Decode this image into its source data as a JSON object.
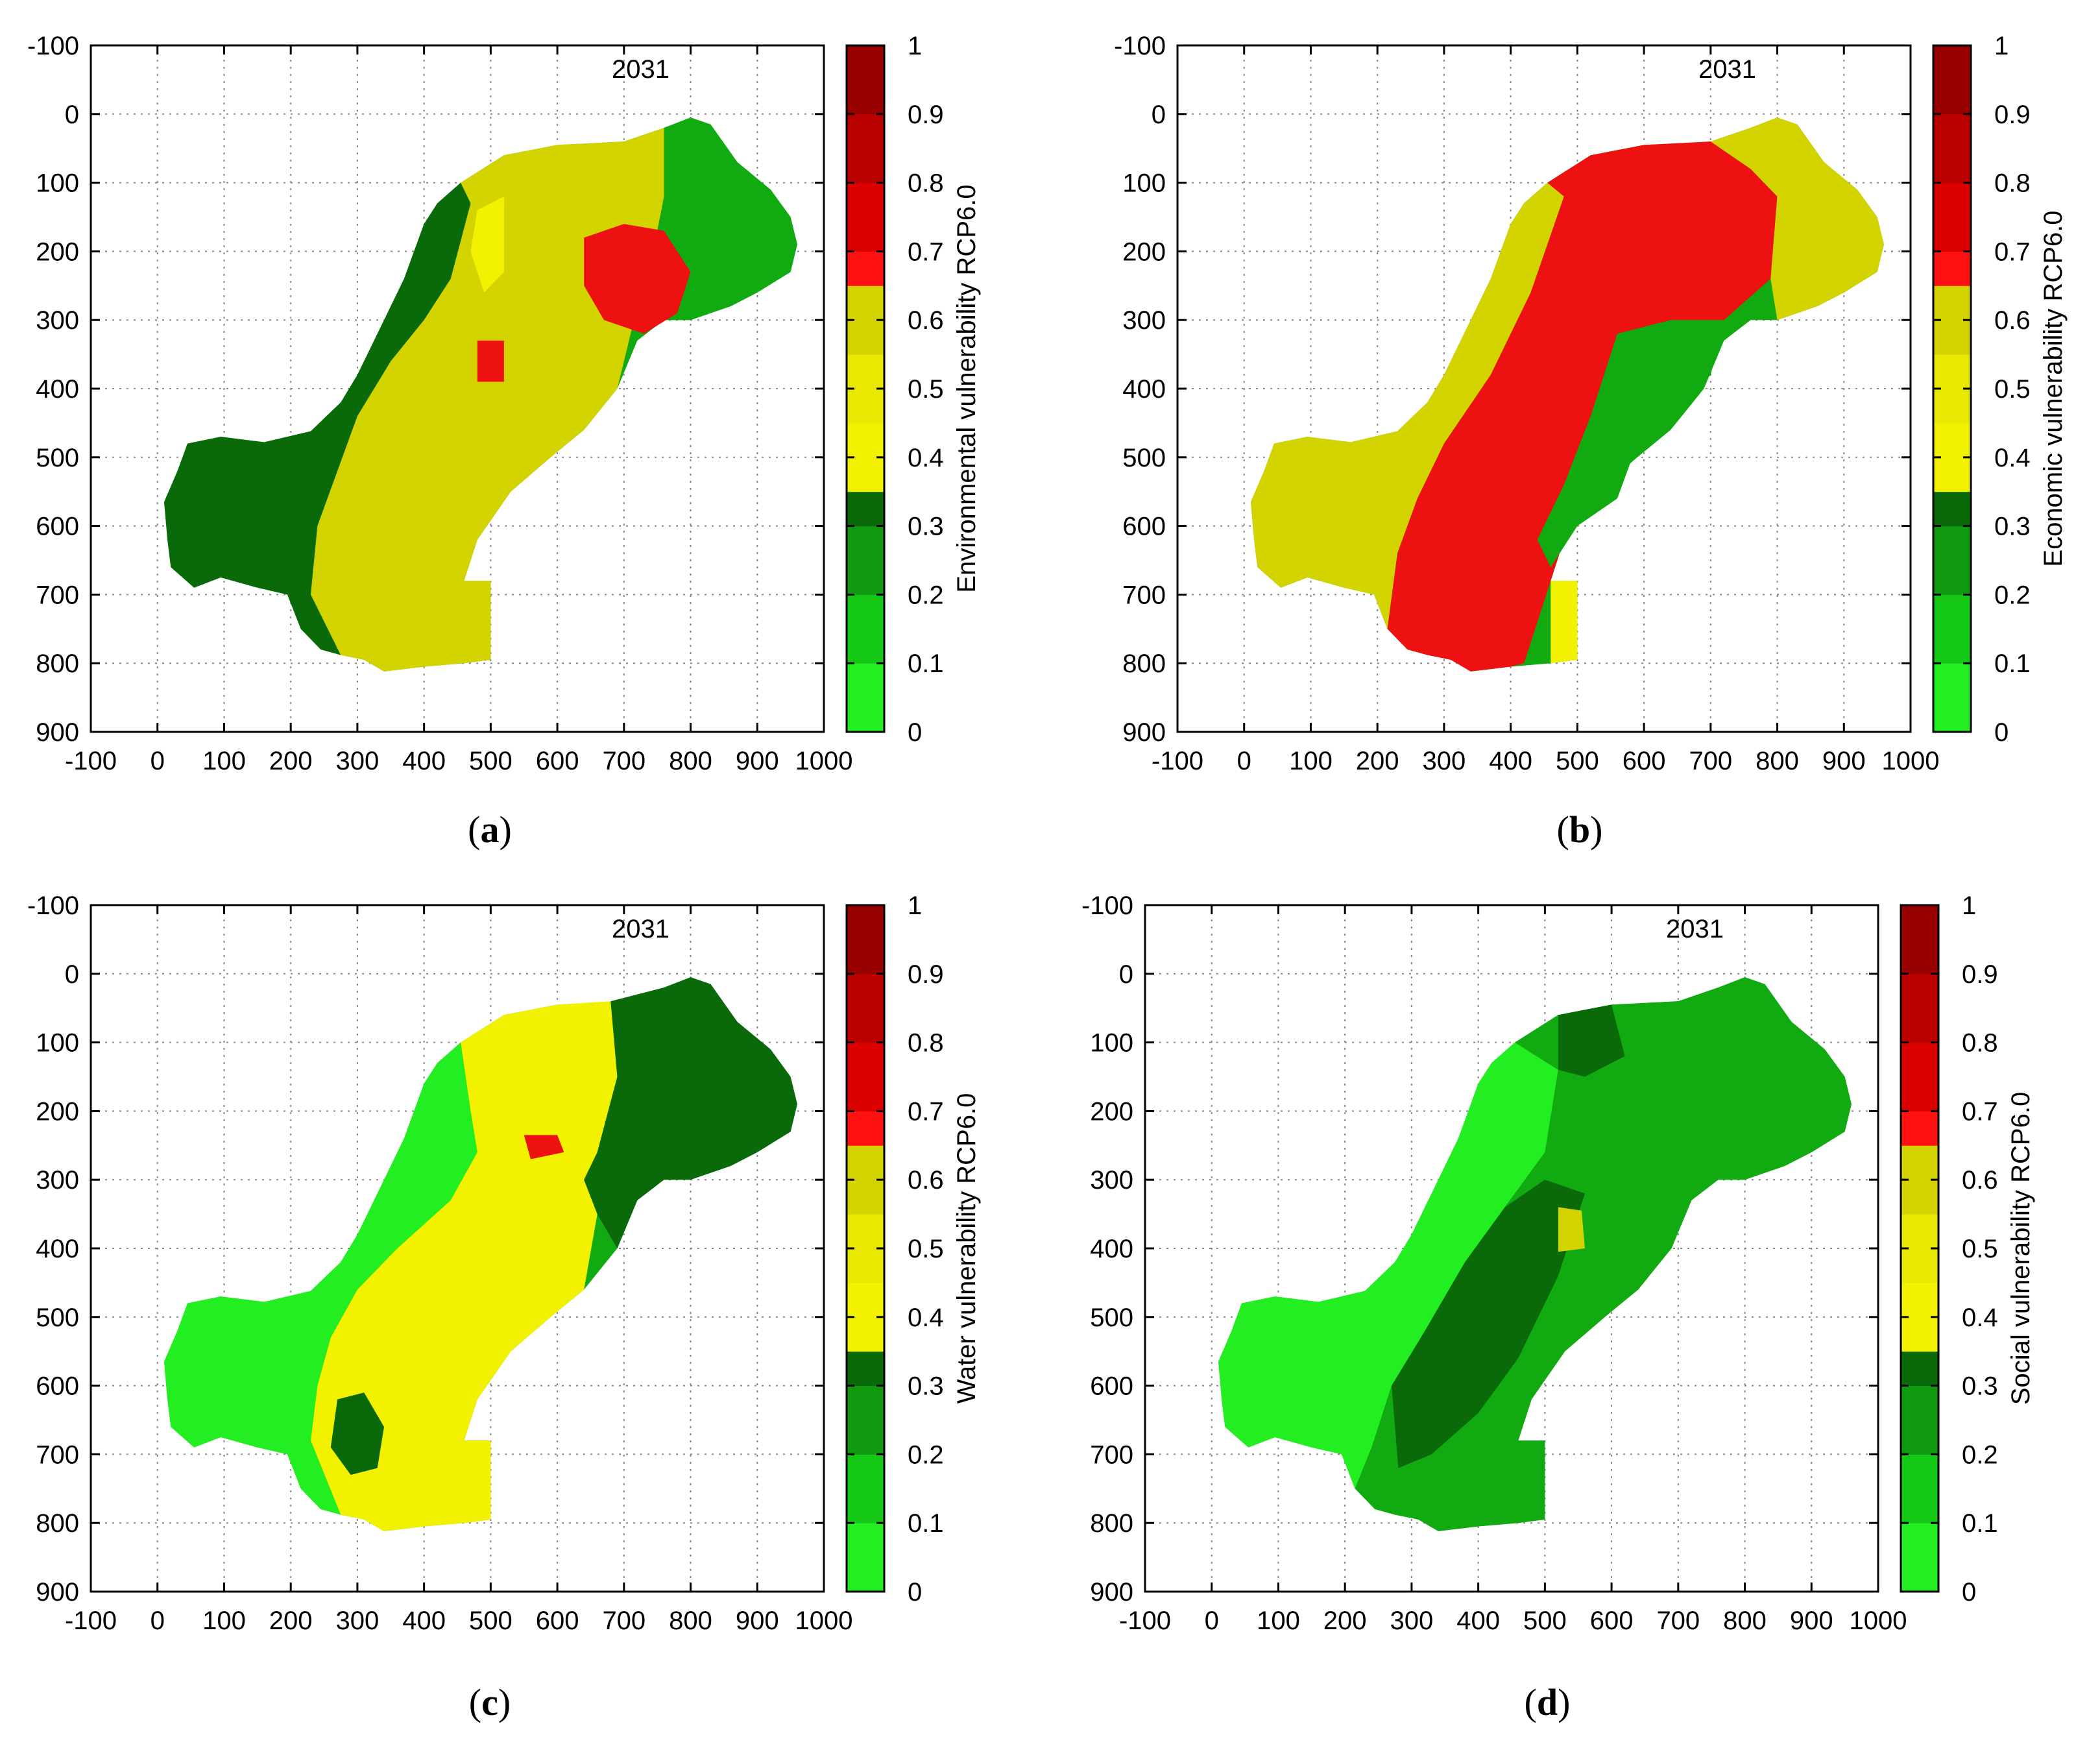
{
  "figure": {
    "panels": [
      {
        "caption_label": "a",
        "year_label": "2031",
        "colorbar_label": "Environmental vulnerability RCP6.0"
      },
      {
        "caption_label": "b",
        "year_label": "2031",
        "colorbar_label": "Economic vulnerability RCP6.0"
      },
      {
        "caption_label": "c",
        "year_label": "2031",
        "colorbar_label": "Water vulnerability RCP6.0"
      },
      {
        "caption_label": "d",
        "year_label": "2031",
        "colorbar_label": "Social vulnerability RCP6.0"
      }
    ]
  },
  "chart_data": [
    {
      "type": "heatmap",
      "title": "2031",
      "xlabel": "",
      "ylabel": "",
      "xlim": [
        -100,
        1000
      ],
      "ylim": [
        900,
        -100
      ],
      "x_ticks": [
        "-100",
        "0",
        "100",
        "200",
        "300",
        "400",
        "500",
        "600",
        "700",
        "800",
        "900",
        "1000"
      ],
      "y_ticks": [
        "-100",
        "0",
        "100",
        "200",
        "300",
        "400",
        "500",
        "600",
        "700",
        "800",
        "900"
      ],
      "colorbar": {
        "label": "Environmental vulnerability RCP6.0",
        "range": [
          0,
          1
        ],
        "ticks": [
          "0",
          "0.1",
          "0.2",
          "0.3",
          "0.4",
          "0.5",
          "0.6",
          "0.7",
          "0.8",
          "0.9",
          "1"
        ]
      },
      "grid": true,
      "dominant_classes": {
        "west": "low",
        "center": "medium",
        "east_center": "high",
        "northeast": "low"
      }
    },
    {
      "type": "heatmap",
      "title": "2031",
      "xlabel": "",
      "ylabel": "",
      "xlim": [
        -100,
        1000
      ],
      "ylim": [
        900,
        -100
      ],
      "x_ticks": [
        "-100",
        "0",
        "100",
        "200",
        "300",
        "400",
        "500",
        "600",
        "700",
        "800",
        "900",
        "1000"
      ],
      "y_ticks": [
        "-100",
        "0",
        "100",
        "200",
        "300",
        "400",
        "500",
        "600",
        "700",
        "800",
        "900"
      ],
      "colorbar": {
        "label": "Economic vulnerability RCP6.0",
        "range": [
          0,
          1
        ],
        "ticks": [
          "0",
          "0.1",
          "0.2",
          "0.3",
          "0.4",
          "0.5",
          "0.6",
          "0.7",
          "0.8",
          "0.9",
          "1"
        ]
      },
      "grid": true,
      "dominant_classes": {
        "west": "medium",
        "center": "high",
        "southcenter": "high",
        "northeast": "medium"
      }
    },
    {
      "type": "heatmap",
      "title": "2031",
      "xlabel": "",
      "ylabel": "",
      "xlim": [
        -100,
        1000
      ],
      "ylim": [
        900,
        -100
      ],
      "x_ticks": [
        "-100",
        "0",
        "100",
        "200",
        "300",
        "400",
        "500",
        "600",
        "700",
        "800",
        "900",
        "1000"
      ],
      "y_ticks": [
        "-100",
        "0",
        "100",
        "200",
        "300",
        "400",
        "500",
        "600",
        "700",
        "800",
        "900"
      ],
      "colorbar": {
        "label": "Water vulnerability RCP6.0",
        "range": [
          0,
          1
        ],
        "ticks": [
          "0",
          "0.1",
          "0.2",
          "0.3",
          "0.4",
          "0.5",
          "0.6",
          "0.7",
          "0.8",
          "0.9",
          "1"
        ]
      },
      "grid": true,
      "dominant_classes": {
        "west": "low",
        "center": "medium",
        "east": "low"
      }
    },
    {
      "type": "heatmap",
      "title": "2031",
      "xlabel": "",
      "ylabel": "",
      "xlim": [
        -100,
        1000
      ],
      "ylim": [
        900,
        -100
      ],
      "x_ticks": [
        "-100",
        "0",
        "100",
        "200",
        "300",
        "400",
        "500",
        "600",
        "700",
        "800",
        "900",
        "1000"
      ],
      "y_ticks": [
        "-100",
        "0",
        "100",
        "200",
        "300",
        "400",
        "500",
        "600",
        "700",
        "800",
        "900"
      ],
      "colorbar": {
        "label": "Social vulnerability RCP6.0",
        "range": [
          0,
          1
        ],
        "ticks": [
          "0",
          "0.1",
          "0.2",
          "0.3",
          "0.4",
          "0.5",
          "0.6",
          "0.7",
          "0.8",
          "0.9",
          "1"
        ]
      },
      "grid": true,
      "dominant_classes": {
        "west": "low",
        "center": "low",
        "east": "low"
      }
    }
  ],
  "colors": {
    "low_light": "#22ee22",
    "low_mid": "#11aa11",
    "low_dark": "#0a6a0a",
    "medium_yellow": "#f2f200",
    "medium_olive": "#d3d300",
    "high_red": "#ee1111",
    "very_high": "#990000"
  }
}
